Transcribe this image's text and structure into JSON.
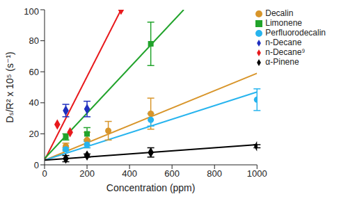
{
  "chart_data": {
    "type": "scatter",
    "x_label": "Concentration (ppm)",
    "y_label": "Dₛ/R² x 10⁵ (s⁻¹)",
    "xlim": [
      0,
      1000
    ],
    "xticks": [
      0,
      200,
      400,
      600,
      800,
      1000
    ],
    "ylim": [
      0,
      100
    ],
    "yticks": [
      0,
      20,
      40,
      60,
      80,
      100
    ],
    "grid": false,
    "legend": "upper right",
    "series": [
      {
        "name": "n-Decane⁹",
        "color": "#e8191c",
        "marker": "diamond",
        "x": [
          60,
          120,
          360
        ],
        "values": [
          26,
          21,
          100
        ],
        "fit": {
          "x": [
            0,
            360
          ],
          "y": [
            3,
            100
          ]
        }
      },
      {
        "name": "n-Decane",
        "color": "#1f2fbf",
        "marker": "diamond",
        "x": [
          100,
          200
        ],
        "values": [
          35,
          36
        ],
        "errors": [
          4,
          5
        ]
      },
      {
        "name": "Limonene",
        "color": "#21a32b",
        "marker": "square",
        "x": [
          100,
          200,
          500
        ],
        "values": [
          18,
          20,
          78
        ],
        "errors": [
          2,
          4,
          14
        ],
        "fit": {
          "x": [
            0,
            655
          ],
          "y": [
            4,
            100
          ]
        }
      },
      {
        "name": "Decalin",
        "color": "#d8952a",
        "marker": "circle",
        "x": [
          100,
          200,
          300,
          500
        ],
        "values": [
          12,
          16,
          22,
          33
        ],
        "errors": [
          2,
          5,
          6,
          10
        ],
        "fit": {
          "x": [
            0,
            1000
          ],
          "y": [
            3,
            59
          ]
        }
      },
      {
        "name": "Perfluorodecalin",
        "color": "#27b4ee",
        "marker": "circle",
        "x": [
          100,
          200,
          500,
          1000
        ],
        "values": [
          10,
          13,
          29,
          42
        ],
        "errors": [
          1,
          2,
          4,
          7
        ],
        "fit": {
          "x": [
            0,
            1000
          ],
          "y": [
            3,
            47
          ]
        }
      },
      {
        "name": "α-Pinene",
        "color": "#000000",
        "marker": "diamond",
        "x": [
          100,
          200,
          500,
          1000
        ],
        "values": [
          4,
          6,
          8,
          12
        ],
        "errors": [
          2,
          1,
          3,
          1
        ],
        "fit": {
          "x": [
            0,
            1000
          ],
          "y": [
            3,
            13
          ]
        }
      }
    ]
  }
}
